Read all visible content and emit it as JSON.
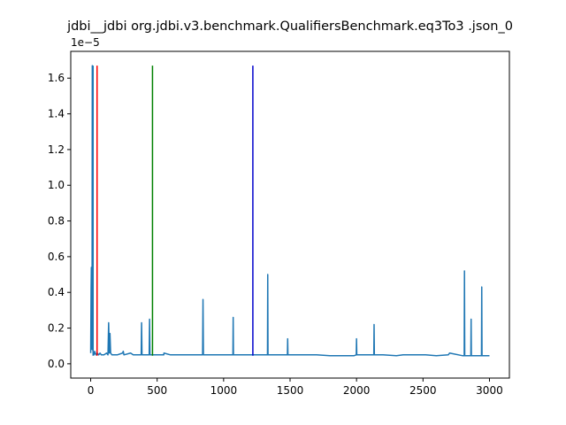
{
  "chart_data": {
    "type": "line",
    "title": "jdbi__jdbi org.jdbi.v3.benchmark.QualifiersBenchmark.eq3To3 .json_0",
    "xlabel": "",
    "ylabel": "",
    "y_multiplier_label": "1e−5",
    "xlim": [
      -150,
      3150
    ],
    "ylim": [
      -0.08,
      1.75
    ],
    "x_ticks": [
      0,
      500,
      1000,
      1500,
      2000,
      2500,
      3000
    ],
    "x_tick_labels": [
      "0",
      "500",
      "1000",
      "1500",
      "2000",
      "2500",
      "3000"
    ],
    "y_ticks": [
      0.0,
      0.2,
      0.4,
      0.6,
      0.8,
      1.0,
      1.2,
      1.4,
      1.6
    ],
    "y_tick_labels": [
      "0.0",
      "0.2",
      "0.4",
      "0.6",
      "0.8",
      "1.0",
      "1.2",
      "1.4",
      "1.6"
    ],
    "baseline": 0.045,
    "series_color": "#1f77b4",
    "series": [
      {
        "x": [
          0,
          3,
          5,
          6,
          8,
          10,
          12,
          14,
          16,
          18,
          20,
          25,
          30,
          40,
          50,
          60,
          70,
          80,
          90,
          100,
          120,
          130,
          135,
          140,
          145,
          150,
          160,
          180,
          200,
          240,
          245,
          250,
          300,
          320,
          330,
          380,
          383,
          386,
          420,
          440,
          443,
          446,
          460,
          500,
          550,
          551,
          600,
          650,
          700,
          750,
          800,
          842,
          845,
          848,
          900,
          1000,
          1070,
          1072,
          1074,
          1100,
          1200,
          1300,
          1330,
          1332,
          1334,
          1400,
          1480,
          1482,
          1484,
          1500,
          1550,
          1600,
          1650,
          1700,
          1800,
          1900,
          1980,
          1998,
          2000,
          2002,
          2050,
          2100,
          2130,
          2132,
          2134,
          2200,
          2300,
          2350,
          2400,
          2450,
          2500,
          2520,
          2600,
          2690,
          2700,
          2800,
          2810,
          2812,
          2814,
          2860,
          2862,
          2864,
          2900,
          2940,
          2942,
          2944,
          3000
        ],
        "y": [
          0.06,
          0.42,
          0.54,
          0.1,
          0.53,
          0.08,
          1.67,
          0.1,
          0.08,
          0.07,
          0.06,
          0.05,
          0.07,
          0.05,
          0.06,
          0.05,
          0.06,
          0.05,
          0.05,
          0.05,
          0.06,
          0.05,
          0.23,
          0.06,
          0.17,
          0.06,
          0.05,
          0.05,
          0.05,
          0.06,
          0.07,
          0.05,
          0.06,
          0.05,
          0.05,
          0.05,
          0.23,
          0.05,
          0.05,
          0.05,
          0.25,
          0.05,
          0.05,
          0.05,
          0.05,
          0.06,
          0.05,
          0.05,
          0.05,
          0.05,
          0.05,
          0.05,
          0.36,
          0.05,
          0.05,
          0.05,
          0.05,
          0.26,
          0.05,
          0.05,
          0.05,
          0.05,
          0.05,
          0.5,
          0.05,
          0.05,
          0.05,
          0.14,
          0.05,
          0.05,
          0.05,
          0.05,
          0.05,
          0.05,
          0.045,
          0.045,
          0.045,
          0.05,
          0.14,
          0.05,
          0.05,
          0.05,
          0.05,
          0.22,
          0.05,
          0.05,
          0.045,
          0.05,
          0.05,
          0.05,
          0.05,
          0.05,
          0.045,
          0.05,
          0.06,
          0.045,
          0.045,
          0.52,
          0.045,
          0.045,
          0.25,
          0.045,
          0.045,
          0.045,
          0.43,
          0.045,
          0.045
        ]
      }
    ],
    "vertical_lines": [
      {
        "x": 18,
        "color": "#1f77b4"
      },
      {
        "x": 48,
        "color": "#ff0000"
      },
      {
        "x": 465,
        "color": "#008000"
      },
      {
        "x": 1220,
        "color": "#0000cc"
      }
    ],
    "vertical_line_top": 1.67,
    "grid": false,
    "legend": "none"
  }
}
